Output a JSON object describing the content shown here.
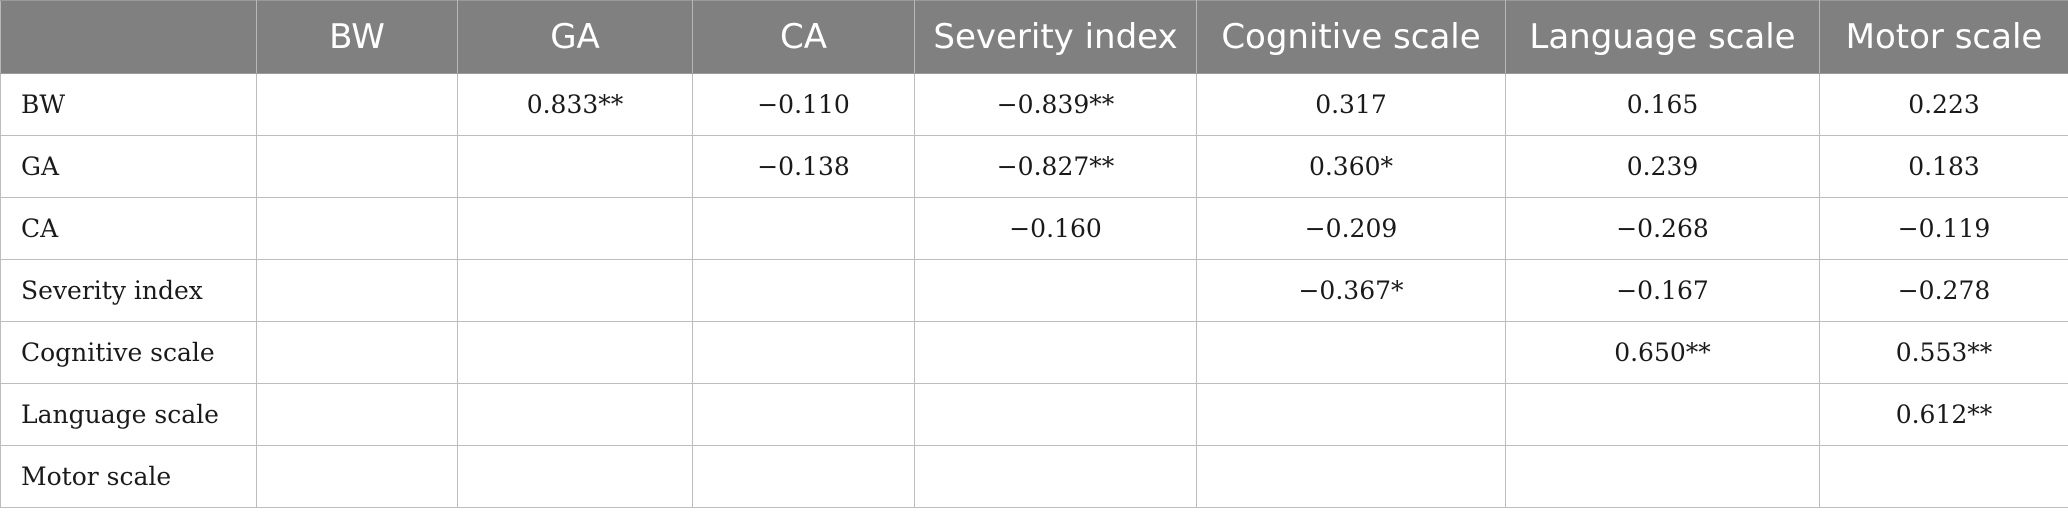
{
  "table": {
    "columns": [
      "",
      "BW",
      "GA",
      "CA",
      "Severity index",
      "Cognitive scale",
      "Language scale",
      "Motor scale"
    ],
    "rows": [
      {
        "label": "BW",
        "cells": [
          "",
          "0.833**",
          "−0.110",
          "−0.839**",
          "0.317",
          "0.165",
          "0.223"
        ]
      },
      {
        "label": "GA",
        "cells": [
          "",
          "",
          "−0.138",
          "−0.827**",
          "0.360*",
          "0.239",
          "0.183"
        ]
      },
      {
        "label": "CA",
        "cells": [
          "",
          "",
          "",
          "−0.160",
          "−0.209",
          "−0.268",
          "−0.119"
        ]
      },
      {
        "label": "Severity index",
        "cells": [
          "",
          "",
          "",
          "",
          "−0.367*",
          "−0.167",
          "−0.278"
        ]
      },
      {
        "label": "Cognitive scale",
        "cells": [
          "",
          "",
          "",
          "",
          "",
          "0.650**",
          "0.553**"
        ]
      },
      {
        "label": "Language scale",
        "cells": [
          "",
          "",
          "",
          "",
          "",
          "",
          "0.612**"
        ]
      },
      {
        "label": "Motor scale",
        "cells": [
          "",
          "",
          "",
          "",
          "",
          "",
          ""
        ]
      }
    ]
  },
  "colors": {
    "header_background": "#808080",
    "header_text": "#ffffff",
    "grid_line": "#bdbdbd"
  }
}
